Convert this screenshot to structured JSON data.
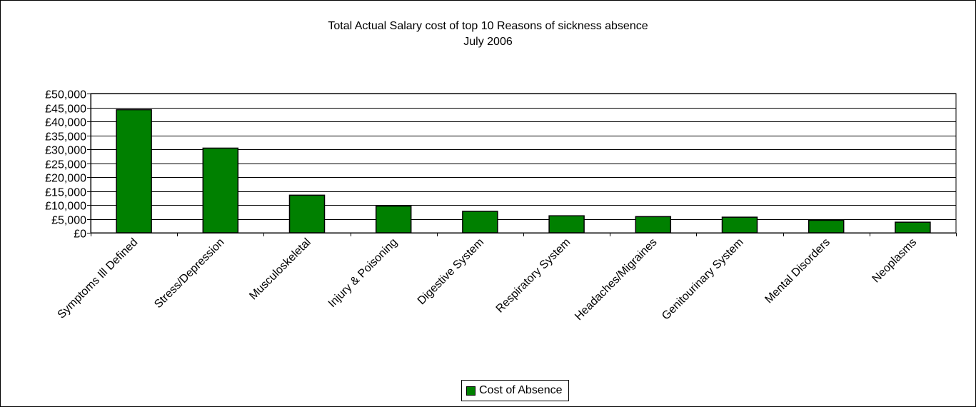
{
  "chart_data": {
    "type": "bar",
    "title": "Total Actual Salary cost of top 10 Reasons of sickness absence",
    "subtitle": "July 2006",
    "categories": [
      "Symptoms Ill Defined",
      "Stress/Depression",
      "Musculoskeletal",
      "Injury & Poisoning",
      "Digestive System",
      "Respiratory System",
      "Headaches/Migraines",
      "Genitourinary System",
      "Mental Disorders",
      "Neoplasms"
    ],
    "series": [
      {
        "name": "Cost of Absence",
        "color": "#008000",
        "values": [
          44200,
          30400,
          13500,
          9600,
          7700,
          6100,
          5800,
          5600,
          4500,
          3800
        ]
      }
    ],
    "yticks": [
      "£0",
      "£5,000",
      "£10,000",
      "£15,000",
      "£20,000",
      "£25,000",
      "£30,000",
      "£35,000",
      "£40,000",
      "£45,000",
      "£50,000"
    ],
    "ylim": [
      0,
      50000
    ],
    "grid": true,
    "legend_position": "bottom"
  }
}
